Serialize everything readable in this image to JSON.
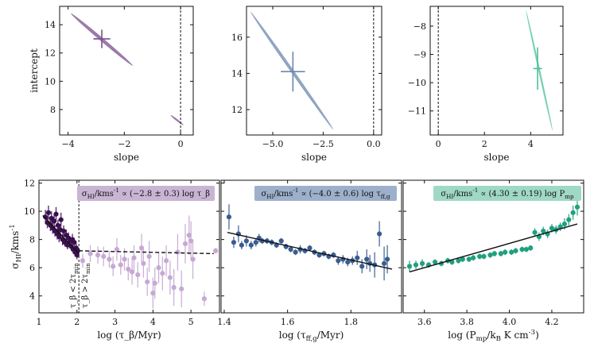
{
  "chart_data": [
    {
      "type": "scatter",
      "panel": "top-left",
      "xlabel": "slope",
      "ylabel": "intercept",
      "xlim": [
        -4.3,
        0.45
      ],
      "ylim": [
        6.2,
        15.3
      ],
      "xticks": [
        "−4",
        "−2",
        "0"
      ],
      "xtick_values": [
        -4,
        -2,
        0
      ],
      "yticks": [
        "8",
        "10",
        "12",
        "14"
      ],
      "ytick_values": [
        8,
        10,
        12,
        14
      ],
      "vline": 0,
      "color": "#7b4e8f",
      "ellipses": [
        {
          "x1": -3.9,
          "y1": 14.8,
          "x2": -1.7,
          "y2": 11.1,
          "width": 0.55
        },
        {
          "x1": -0.35,
          "y1": 7.6,
          "x2": 0.1,
          "y2": 6.9,
          "width": 0.3
        }
      ],
      "best_fit": {
        "slope": -2.8,
        "slope_err": 0.3,
        "intercept": 13.0,
        "intercept_err": 0.65
      }
    },
    {
      "type": "scatter",
      "panel": "top-middle",
      "xlabel": "slope",
      "ylabel": "",
      "xlim": [
        -6.3,
        0.4
      ],
      "ylim": [
        10.6,
        17.7
      ],
      "xticks": [
        "−5.0",
        "−2.5",
        "0.0"
      ],
      "xtick_values": [
        -5,
        -2.5,
        0
      ],
      "yticks": [
        "12",
        "14",
        "16"
      ],
      "ytick_values": [
        12,
        14,
        16
      ],
      "vline": 0,
      "color": "#6b87ad",
      "ellipses": [
        {
          "x1": -6.1,
          "y1": 17.4,
          "x2": -2.0,
          "y2": 10.9,
          "width": 0.5
        }
      ],
      "best_fit": {
        "slope": -4.0,
        "slope_err": 0.6,
        "intercept": 14.1,
        "intercept_err": 1.1
      }
    },
    {
      "type": "scatter",
      "panel": "top-right",
      "xlabel": "slope",
      "ylabel": "",
      "xlim": [
        -0.35,
        5.4
      ],
      "ylim": [
        -11.85,
        -7.3
      ],
      "xticks": [
        "0",
        "2",
        "4"
      ],
      "xtick_values": [
        0,
        2,
        4
      ],
      "yticks": [
        "−11",
        "−10",
        "−9",
        "−8"
      ],
      "ytick_values": [
        -11,
        -10,
        -9,
        -8
      ],
      "vline": 0,
      "color": "#4fbf9c",
      "ellipses": [
        {
          "x1": 3.8,
          "y1": -7.45,
          "x2": 4.95,
          "y2": -11.7,
          "width": 0.12
        }
      ],
      "best_fit": {
        "slope": 4.3,
        "slope_err": 0.19,
        "intercept": -9.5,
        "intercept_err": 0.75
      }
    },
    {
      "type": "scatter",
      "panel": "bottom-left",
      "xlabel": "log (τ_β/Myr)",
      "ylabel": "σ_HI/kms^-1",
      "xlim": [
        1.0,
        5.75
      ],
      "ylim": [
        2.8,
        12.2
      ],
      "xticks": [
        "1",
        "2",
        "3",
        "4",
        "5"
      ],
      "xtick_values": [
        1,
        2,
        3,
        4,
        5
      ],
      "yticks": [
        "4",
        "6",
        "8",
        "10",
        "12"
      ],
      "ytick_values": [
        4,
        6,
        8,
        10,
        12
      ],
      "vline": 2.05,
      "annotation": "σ_HI/kms^-1 ∝ (−2.8 ± 0.3) log τ_β",
      "annotation_color": "#c9b4d3",
      "region_labels": [
        "τ_β < 2τ_min",
        "τ_β > 2τ_min"
      ],
      "series": [
        {
          "name": "τ_β < 2τ_min",
          "color": "#3b0f4f",
          "x": [
            1.17,
            1.22,
            1.25,
            1.3,
            1.33,
            1.36,
            1.4,
            1.42,
            1.45,
            1.48,
            1.5,
            1.53,
            1.56,
            1.58,
            1.62,
            1.65,
            1.68,
            1.72,
            1.75,
            1.78,
            1.82,
            1.85,
            1.88,
            1.9,
            1.93,
            1.95,
            1.98,
            2.0,
            2.02
          ],
          "y": [
            9.6,
            9.2,
            9.9,
            9.0,
            9.5,
            8.8,
            9.3,
            8.6,
            9.8,
            8.4,
            9.0,
            8.2,
            8.7,
            9.4,
            8.0,
            8.6,
            7.8,
            8.3,
            7.6,
            8.1,
            7.9,
            7.5,
            8.0,
            7.3,
            7.8,
            7.1,
            7.4,
            6.9,
            7.2
          ],
          "yerr": [
            0.5,
            0.4,
            0.5,
            0.4,
            0.5,
            0.4,
            0.5,
            0.4,
            0.5,
            0.4,
            0.4,
            0.4,
            0.4,
            0.5,
            0.4,
            0.4,
            0.3,
            0.4,
            0.3,
            0.4,
            0.3,
            0.3,
            0.4,
            0.3,
            0.3,
            0.3,
            0.3,
            0.3,
            0.3
          ]
        },
        {
          "name": "τ_β > 2τ_min",
          "color": "#c7a8d4",
          "x": [
            2.15,
            2.35,
            2.55,
            2.7,
            2.85,
            2.95,
            3.05,
            3.15,
            3.25,
            3.35,
            3.45,
            3.5,
            3.6,
            3.7,
            3.75,
            3.85,
            3.9,
            4.0,
            4.05,
            4.15,
            4.25,
            4.35,
            4.45,
            4.55,
            4.65,
            4.75,
            4.85,
            4.95,
            5.0,
            5.05,
            5.35,
            5.65
          ],
          "y": [
            6.5,
            7.0,
            6.9,
            6.8,
            6.6,
            6.1,
            7.3,
            6.2,
            6.6,
            5.9,
            5.7,
            6.7,
            5.5,
            7.4,
            6.3,
            5.0,
            6.8,
            4.2,
            4.9,
            6.0,
            5.6,
            6.5,
            5.3,
            4.6,
            7.1,
            4.5,
            7.7,
            8.3,
            7.9,
            6.6,
            3.8,
            7.2
          ],
          "yerr": [
            0.5,
            0.6,
            0.6,
            0.7,
            0.6,
            0.7,
            0.8,
            0.7,
            0.8,
            0.8,
            0.9,
            0.9,
            0.9,
            1.0,
            1.0,
            1.0,
            1.1,
            1.1,
            1.1,
            1.1,
            1.2,
            1.1,
            1.2,
            1.3,
            1.3,
            1.3,
            1.4,
            1.4,
            1.4,
            1.4,
            0.5,
            0.2
          ]
        }
      ],
      "fit_lines": [
        {
          "x": [
            1.1,
            2.05
          ],
          "y": [
            9.7,
            7.0
          ],
          "style": "solid"
        },
        {
          "x": [
            2.05,
            5.6
          ],
          "y": [
            7.2,
            7.0
          ],
          "style": "dashed"
        }
      ]
    },
    {
      "type": "scatter",
      "panel": "bottom-middle",
      "xlabel": "log (τ_ff,g/Myr)",
      "ylabel": "",
      "xlim": [
        1.39,
        1.96
      ],
      "ylim": [
        2.8,
        12.2
      ],
      "xticks": [
        "1.4",
        "1.6",
        "1.8"
      ],
      "xtick_values": [
        1.4,
        1.6,
        1.8
      ],
      "yticks": [],
      "ytick_values": [],
      "annotation": "σ_HI/kms^-1 ∝ (−4.0 ± 0.6) log τ_ff,g",
      "annotation_color": "#9db0cb",
      "series": [
        {
          "name": "data",
          "color": "#3a5d8f",
          "x": [
            1.415,
            1.43,
            1.445,
            1.455,
            1.47,
            1.485,
            1.5,
            1.51,
            1.52,
            1.535,
            1.55,
            1.565,
            1.58,
            1.595,
            1.61,
            1.625,
            1.64,
            1.655,
            1.67,
            1.685,
            1.7,
            1.715,
            1.73,
            1.745,
            1.76,
            1.775,
            1.79,
            1.805,
            1.82,
            1.835,
            1.85,
            1.86,
            1.875,
            1.89,
            1.905,
            1.915
          ],
          "y": [
            9.6,
            7.8,
            8.4,
            7.6,
            7.9,
            7.6,
            7.8,
            8.1,
            7.9,
            7.9,
            7.8,
            7.6,
            7.9,
            7.5,
            7.3,
            7.1,
            7.3,
            7.2,
            7.4,
            7.1,
            6.9,
            7.0,
            6.8,
            6.9,
            6.5,
            6.6,
            6.4,
            6.5,
            6.7,
            6.1,
            6.6,
            6.3,
            6.2,
            8.4,
            6.3,
            6.6
          ],
          "yerr": [
            0.9,
            0.4,
            0.6,
            0.3,
            0.4,
            0.3,
            0.3,
            0.3,
            0.2,
            0.2,
            0.2,
            0.2,
            0.2,
            0.2,
            0.2,
            0.2,
            0.3,
            0.2,
            0.2,
            0.2,
            0.2,
            0.2,
            0.2,
            0.2,
            0.3,
            0.3,
            0.3,
            0.3,
            0.5,
            0.5,
            0.7,
            0.6,
            0.9,
            0.9,
            1.2,
            1.0
          ]
        }
      ],
      "fit_lines": [
        {
          "x": [
            1.41,
            1.93
          ],
          "y": [
            8.5,
            5.9
          ],
          "style": "solid"
        }
      ]
    },
    {
      "type": "scatter",
      "panel": "bottom-right",
      "xlabel": "log (P_mp/k_B K cm^-3)",
      "ylabel": "",
      "xlim": [
        3.5,
        4.35
      ],
      "ylim": [
        2.8,
        12.2
      ],
      "xticks": [
        "3.6",
        "3.8",
        "4.0",
        "4.2"
      ],
      "xtick_values": [
        3.6,
        3.8,
        4.0,
        4.2
      ],
      "yticks": [],
      "ytick_values": [],
      "annotation": "σ_HI/kms^-1 ∝ (4.30 ± 0.19) log P_mp",
      "annotation_color": "#9fd8c4",
      "series": [
        {
          "name": "data",
          "color": "#1fa07f",
          "x": [
            3.53,
            3.56,
            3.59,
            3.62,
            3.65,
            3.68,
            3.71,
            3.73,
            3.76,
            3.78,
            3.81,
            3.83,
            3.86,
            3.88,
            3.91,
            3.93,
            3.96,
            3.98,
            4.01,
            4.03,
            4.06,
            4.08,
            4.1,
            4.12,
            4.14,
            4.16,
            4.18,
            4.2,
            4.22,
            4.24,
            4.26,
            4.28,
            4.3,
            4.32
          ],
          "y": [
            6.1,
            6.2,
            6.3,
            6.2,
            6.4,
            6.3,
            6.5,
            6.4,
            6.5,
            6.6,
            6.6,
            6.7,
            6.8,
            6.8,
            6.9,
            7.0,
            7.0,
            7.1,
            7.1,
            7.2,
            7.3,
            7.3,
            7.4,
            8.5,
            8.2,
            8.6,
            8.4,
            8.8,
            8.7,
            8.9,
            9.1,
            9.4,
            9.9,
            10.3
          ],
          "yerr": [
            0.4,
            0.3,
            0.3,
            0.2,
            0.2,
            0.2,
            0.2,
            0.2,
            0.2,
            0.2,
            0.2,
            0.2,
            0.2,
            0.2,
            0.2,
            0.2,
            0.2,
            0.2,
            0.2,
            0.2,
            0.2,
            0.2,
            0.2,
            0.3,
            0.3,
            0.3,
            0.3,
            0.3,
            0.3,
            0.3,
            0.4,
            0.4,
            0.5,
            0.6
          ]
        }
      ],
      "fit_lines": [
        {
          "x": [
            3.53,
            4.32
          ],
          "y": [
            5.7,
            9.1
          ],
          "style": "solid"
        }
      ]
    }
  ]
}
